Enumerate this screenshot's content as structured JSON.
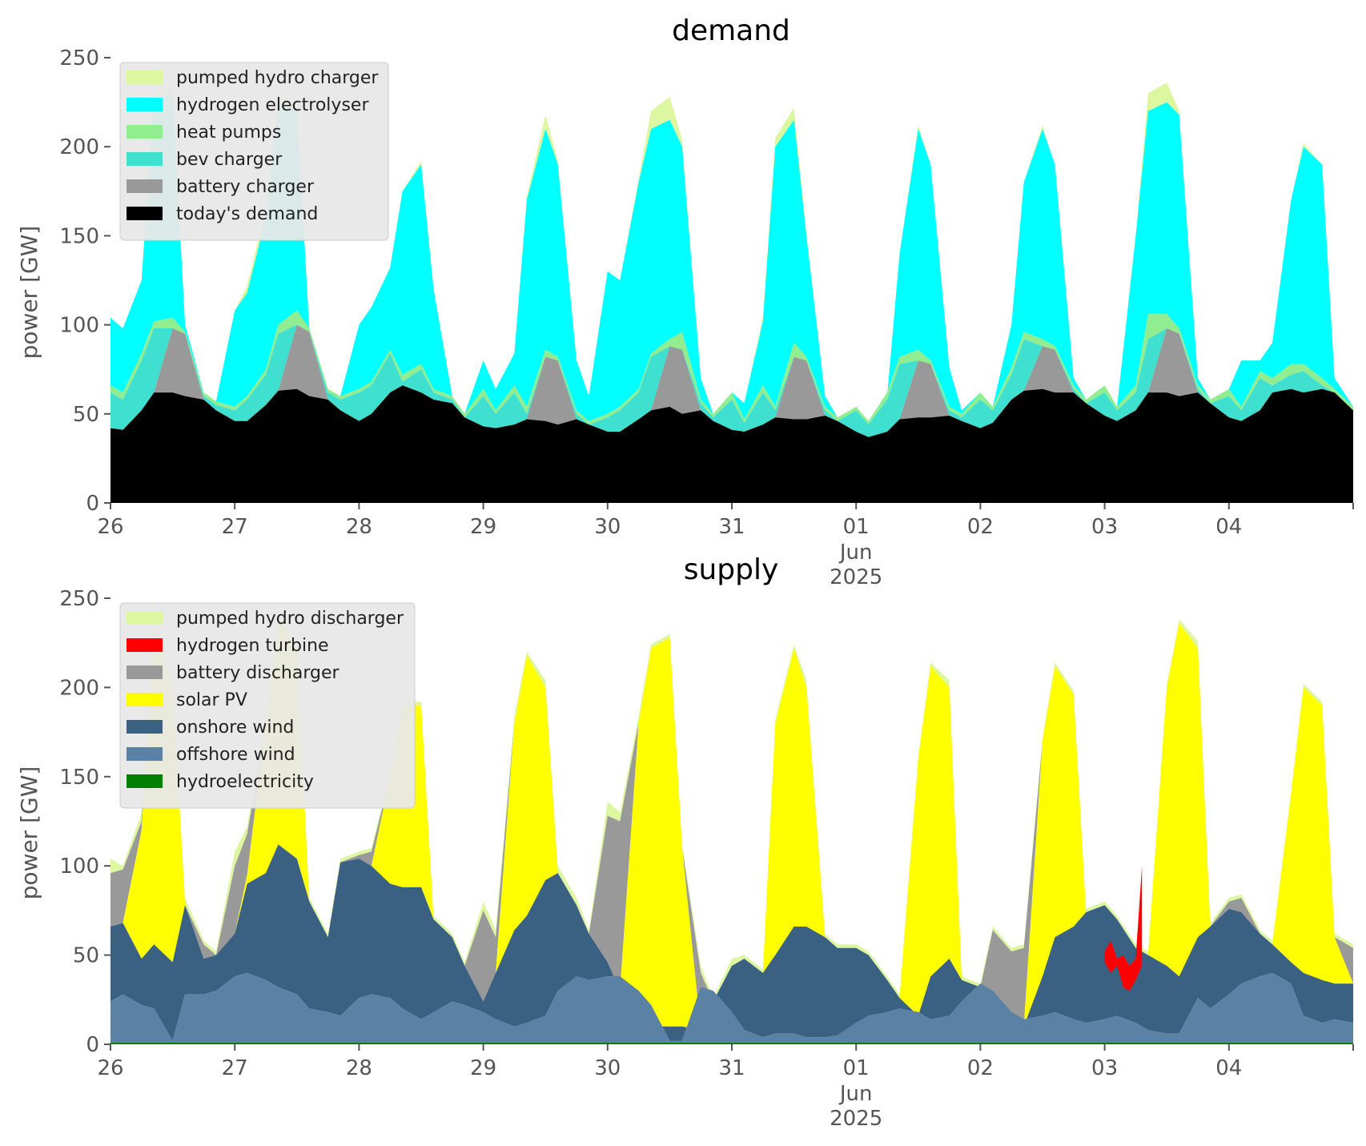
{
  "chart_data": [
    {
      "type": "area",
      "title": "demand",
      "xlabel": "",
      "ylabel": "power [GW]",
      "ylim": [
        0,
        250
      ],
      "xlim": [
        "2025-05-26",
        "2025-06-05"
      ],
      "x_ticks": [
        "26",
        "27",
        "28",
        "29",
        "30",
        "31",
        "01",
        "02",
        "03",
        "04"
      ],
      "x_tick_sublabel": {
        "tick": "01",
        "month": "Jun",
        "year": "2025"
      },
      "y_ticks": [
        "0",
        "50",
        "100",
        "150",
        "200",
        "250"
      ],
      "grid": false,
      "legend_position": "top-left",
      "stacked": true,
      "x_days": [
        "2025-05-26",
        "2025-05-27",
        "2025-05-28",
        "2025-05-29",
        "2025-05-30",
        "2025-05-31",
        "2025-06-01",
        "2025-06-02",
        "2025-06-03",
        "2025-06-04",
        "2025-06-05"
      ],
      "series": [
        {
          "name": "pumped hydro charger",
          "color": "#dcf7a0",
          "cumulative_values": [
            [
              104,
              98,
              125,
              235,
              101,
              58,
              112,
              122,
              230,
              110,
              66,
              100,
              110,
              190,
              193,
              58,
              75,
              70,
              206,
              218,
              82,
              80,
              135,
              218,
              222,
              236,
              58,
              40,
              220,
              224,
              52,
              50,
              39,
              210,
              216,
              62,
              64,
              52,
              210,
              205,
              61,
              50,
              60,
              228,
              238,
              78,
              80,
              70,
              195,
              205,
              62,
              58
            ]
          ]
        },
        {
          "name": "hydrogen electrolyser",
          "color": "#00ffff",
          "values": []
        },
        {
          "name": "heat pumps",
          "color": "#90ee90",
          "values": []
        },
        {
          "name": "bev charger",
          "color": "#40e0d0",
          "values": []
        },
        {
          "name": "battery charger",
          "color": "#999999",
          "values": []
        },
        {
          "name": "today's demand",
          "color": "#000000",
          "values": []
        }
      ]
    },
    {
      "type": "area",
      "title": "supply",
      "xlabel": "",
      "ylabel": "power [GW]",
      "ylim": [
        0,
        250
      ],
      "xlim": [
        "2025-05-26",
        "2025-06-05"
      ],
      "x_ticks": [
        "26",
        "27",
        "28",
        "29",
        "30",
        "31",
        "01",
        "02",
        "03",
        "04"
      ],
      "x_tick_sublabel": {
        "tick": "01",
        "month": "Jun",
        "year": "2025"
      },
      "y_ticks": [
        "0",
        "50",
        "100",
        "150",
        "200",
        "250"
      ],
      "grid": false,
      "legend_position": "top-left",
      "stacked": true,
      "series": [
        {
          "name": "pumped hydro discharger",
          "color": "#dcf7a0",
          "values": []
        },
        {
          "name": "hydrogen turbine",
          "color": "#ff0000",
          "values": []
        },
        {
          "name": "battery discharger",
          "color": "#999999",
          "values": []
        },
        {
          "name": "solar PV",
          "color": "#ffff00",
          "values": []
        },
        {
          "name": "onshore wind",
          "color": "#3b6182",
          "values": []
        },
        {
          "name": "offshore wind",
          "color": "#5b82a5",
          "values": []
        },
        {
          "name": "hydroelectricity",
          "color": "#008000",
          "values": []
        }
      ]
    }
  ],
  "demand_stack": {
    "times": [
      0,
      0.1,
      0.25,
      0.35,
      0.5,
      0.6,
      0.75,
      0.85,
      1.0,
      1.1,
      1.25,
      1.35,
      1.5,
      1.6,
      1.75,
      1.85,
      2.0,
      2.1,
      2.25,
      2.35,
      2.5,
      2.6,
      2.75,
      2.85,
      3.0,
      3.1,
      3.25,
      3.35,
      3.5,
      3.6,
      3.75,
      3.85,
      4.0,
      4.1,
      4.25,
      4.35,
      4.5,
      4.6,
      4.75,
      4.85,
      5.0,
      5.1,
      5.25,
      5.35,
      5.5,
      5.6,
      5.75,
      5.85,
      6.0,
      6.1,
      6.25,
      6.35,
      6.5,
      6.6,
      6.75,
      6.85,
      7.0,
      7.1,
      7.25,
      7.35,
      7.5,
      7.6,
      7.75,
      7.85,
      8.0,
      8.1,
      8.25,
      8.35,
      8.5,
      8.6,
      8.75,
      8.85,
      9.0,
      9.1,
      9.25,
      9.35,
      9.5,
      9.6,
      9.75,
      9.85,
      10.0
    ],
    "today": [
      42,
      41,
      52,
      62,
      62,
      60,
      58,
      52,
      46,
      46,
      55,
      63,
      64,
      60,
      58,
      52,
      46,
      50,
      62,
      66,
      62,
      58,
      56,
      48,
      43,
      42,
      44,
      47,
      46,
      44,
      47,
      44,
      40,
      40,
      47,
      52,
      54,
      50,
      52,
      46,
      41,
      40,
      44,
      48,
      47,
      47,
      49,
      46,
      40,
      37,
      40,
      47,
      48,
      48,
      49,
      46,
      42,
      45,
      58,
      63,
      64,
      62,
      62,
      56,
      49,
      46,
      52,
      62,
      62,
      60,
      62,
      56,
      48,
      46,
      52,
      62,
      64,
      62,
      64,
      62,
      52
    ],
    "battery": [
      42,
      41,
      52,
      62,
      98,
      95,
      58,
      52,
      46,
      46,
      55,
      63,
      100,
      96,
      58,
      52,
      46,
      50,
      62,
      66,
      62,
      58,
      56,
      48,
      43,
      42,
      44,
      47,
      82,
      80,
      47,
      44,
      40,
      40,
      47,
      52,
      88,
      86,
      52,
      46,
      41,
      40,
      44,
      48,
      82,
      80,
      49,
      46,
      40,
      37,
      40,
      47,
      80,
      78,
      49,
      46,
      42,
      45,
      58,
      63,
      88,
      86,
      62,
      56,
      49,
      46,
      52,
      62,
      98,
      95,
      62,
      56,
      48,
      46,
      52,
      62,
      64,
      62,
      64,
      62,
      52
    ],
    "bev": [
      62,
      58,
      80,
      98,
      98,
      95,
      60,
      55,
      52,
      58,
      72,
      95,
      100,
      96,
      62,
      58,
      62,
      66,
      84,
      68,
      75,
      62,
      58,
      48,
      60,
      50,
      62,
      50,
      82,
      80,
      50,
      44,
      48,
      52,
      62,
      82,
      88,
      86,
      56,
      48,
      58,
      45,
      62,
      52,
      82,
      80,
      52,
      46,
      52,
      44,
      58,
      78,
      80,
      78,
      52,
      48,
      58,
      52,
      72,
      92,
      88,
      86,
      64,
      56,
      62,
      52,
      62,
      92,
      98,
      95,
      64,
      56,
      60,
      52,
      70,
      66,
      72,
      74,
      66,
      62,
      52
    ],
    "heatpumps": [
      66,
      62,
      84,
      102,
      104,
      96,
      62,
      57,
      54,
      60,
      75,
      100,
      108,
      98,
      64,
      60,
      64,
      68,
      86,
      72,
      78,
      64,
      60,
      50,
      64,
      52,
      66,
      54,
      86,
      82,
      52,
      46,
      50,
      54,
      64,
      84,
      92,
      96,
      58,
      50,
      62,
      47,
      66,
      54,
      90,
      82,
      54,
      48,
      54,
      46,
      62,
      82,
      86,
      80,
      54,
      50,
      62,
      54,
      76,
      96,
      92,
      88,
      66,
      58,
      66,
      54,
      66,
      106,
      106,
      98,
      66,
      58,
      64,
      54,
      74,
      70,
      78,
      78,
      70,
      64,
      54
    ],
    "electrolyser": [
      104,
      98,
      125,
      225,
      230,
      100,
      62,
      57,
      108,
      118,
      160,
      225,
      220,
      98,
      64,
      60,
      100,
      110,
      132,
      175,
      190,
      120,
      60,
      50,
      80,
      64,
      84,
      170,
      210,
      190,
      80,
      60,
      130,
      125,
      180,
      210,
      215,
      200,
      70,
      50,
      62,
      56,
      102,
      200,
      215,
      150,
      60,
      48,
      54,
      46,
      60,
      140,
      210,
      190,
      76,
      52,
      62,
      54,
      100,
      180,
      210,
      190,
      70,
      58,
      66,
      54,
      150,
      220,
      225,
      218,
      70,
      58,
      64,
      80,
      80,
      90,
      170,
      200,
      190,
      70,
      54
    ],
    "pumped": [
      104,
      98,
      125,
      235,
      232,
      100,
      62,
      57,
      108,
      122,
      165,
      232,
      222,
      98,
      64,
      60,
      100,
      110,
      132,
      175,
      192,
      120,
      60,
      50,
      80,
      64,
      84,
      172,
      218,
      192,
      80,
      60,
      130,
      125,
      182,
      220,
      228,
      204,
      70,
      50,
      62,
      56,
      104,
      205,
      222,
      152,
      60,
      48,
      54,
      46,
      60,
      140,
      212,
      190,
      76,
      52,
      62,
      54,
      100,
      180,
      212,
      190,
      70,
      58,
      66,
      54,
      150,
      230,
      236,
      220,
      70,
      58,
      64,
      80,
      80,
      90,
      170,
      202,
      190,
      70,
      54
    ]
  },
  "supply_stack": {
    "times": [
      0,
      0.1,
      0.25,
      0.35,
      0.5,
      0.6,
      0.75,
      0.85,
      1.0,
      1.1,
      1.25,
      1.35,
      1.5,
      1.6,
      1.75,
      1.85,
      2.0,
      2.1,
      2.25,
      2.35,
      2.5,
      2.6,
      2.75,
      2.85,
      3.0,
      3.1,
      3.25,
      3.35,
      3.5,
      3.6,
      3.75,
      3.85,
      4.0,
      4.1,
      4.25,
      4.35,
      4.5,
      4.6,
      4.75,
      4.85,
      5.0,
      5.1,
      5.25,
      5.35,
      5.5,
      5.6,
      5.75,
      5.85,
      6.0,
      6.1,
      6.25,
      6.35,
      6.5,
      6.6,
      6.75,
      6.85,
      7.0,
      7.1,
      7.25,
      7.35,
      7.5,
      7.6,
      7.75,
      7.85,
      8.0,
      8.1,
      8.25,
      8.35,
      8.5,
      8.6,
      8.75,
      8.85,
      9.0,
      9.1,
      9.25,
      9.35,
      9.5,
      9.6,
      9.75,
      9.85,
      10.0
    ],
    "hydro": [
      1,
      1,
      1,
      1,
      1,
      1,
      1,
      1,
      1,
      1,
      1,
      1,
      1,
      1,
      1,
      1,
      1,
      1,
      1,
      1,
      1,
      1,
      1,
      1,
      1,
      1,
      1,
      1,
      1,
      1,
      1,
      1,
      1,
      1,
      1,
      1,
      1,
      1,
      1,
      1,
      1,
      1,
      1,
      1,
      1,
      1,
      1,
      1,
      1,
      1,
      1,
      1,
      1,
      1,
      1,
      1,
      1,
      1,
      1,
      1,
      1,
      1,
      1,
      1,
      1,
      1,
      1,
      1,
      1,
      1,
      1,
      1,
      1,
      1,
      1,
      1,
      1,
      1,
      1,
      1,
      1
    ],
    "offshore": [
      24,
      28,
      22,
      20,
      2,
      28,
      28,
      30,
      38,
      40,
      36,
      32,
      28,
      20,
      18,
      16,
      26,
      28,
      26,
      20,
      14,
      18,
      24,
      22,
      18,
      14,
      10,
      12,
      16,
      30,
      38,
      36,
      38,
      38,
      30,
      22,
      2,
      2,
      32,
      30,
      18,
      8,
      4,
      6,
      6,
      4,
      4,
      5,
      12,
      16,
      18,
      20,
      18,
      14,
      16,
      24,
      34,
      30,
      18,
      14,
      16,
      18,
      14,
      12,
      14,
      16,
      12,
      8,
      6,
      6,
      26,
      20,
      28,
      34,
      38,
      40,
      34,
      16,
      12,
      14,
      12
    ],
    "onshore": [
      66,
      68,
      48,
      56,
      46,
      78,
      48,
      50,
      62,
      90,
      96,
      112,
      104,
      80,
      60,
      102,
      104,
      100,
      90,
      88,
      88,
      70,
      60,
      44,
      24,
      40,
      64,
      72,
      92,
      96,
      78,
      62,
      46,
      30,
      16,
      10,
      10,
      10,
      8,
      24,
      44,
      48,
      40,
      50,
      66,
      66,
      60,
      54,
      54,
      50,
      36,
      26,
      16,
      38,
      48,
      36,
      32,
      28,
      18,
      10,
      38,
      60,
      66,
      74,
      78,
      70,
      54,
      50,
      44,
      38,
      60,
      66,
      76,
      74,
      62,
      56,
      46,
      40,
      36,
      34,
      34
    ],
    "solar": [
      66,
      68,
      120,
      230,
      200,
      78,
      48,
      50,
      62,
      95,
      180,
      240,
      220,
      80,
      60,
      102,
      104,
      100,
      150,
      190,
      190,
      70,
      60,
      44,
      24,
      40,
      180,
      218,
      200,
      96,
      78,
      62,
      46,
      30,
      180,
      222,
      228,
      110,
      8,
      24,
      44,
      48,
      40,
      180,
      222,
      200,
      60,
      54,
      54,
      50,
      36,
      26,
      160,
      212,
      200,
      36,
      32,
      28,
      18,
      10,
      170,
      212,
      196,
      74,
      78,
      70,
      54,
      50,
      200,
      236,
      222,
      66,
      76,
      74,
      62,
      56,
      140,
      200,
      190,
      60,
      34
    ],
    "battery": [
      96,
      98,
      125,
      230,
      200,
      78,
      56,
      50,
      100,
      118,
      180,
      240,
      220,
      80,
      60,
      102,
      106,
      108,
      150,
      190,
      190,
      70,
      60,
      44,
      75,
      60,
      180,
      218,
      200,
      96,
      78,
      62,
      128,
      125,
      180,
      222,
      228,
      110,
      40,
      24,
      44,
      48,
      40,
      180,
      222,
      200,
      60,
      54,
      54,
      50,
      36,
      26,
      160,
      212,
      200,
      36,
      32,
      64,
      52,
      54,
      170,
      212,
      196,
      74,
      78,
      70,
      54,
      50,
      200,
      236,
      222,
      66,
      80,
      82,
      62,
      56,
      140,
      200,
      190,
      60,
      54
    ],
    "turbine": [
      96,
      98,
      125,
      230,
      200,
      78,
      56,
      50,
      100,
      118,
      180,
      240,
      220,
      80,
      60,
      102,
      106,
      108,
      150,
      190,
      190,
      70,
      60,
      44,
      75,
      60,
      180,
      218,
      200,
      96,
      78,
      62,
      128,
      125,
      180,
      222,
      228,
      110,
      40,
      24,
      44,
      48,
      40,
      180,
      222,
      200,
      60,
      54,
      54,
      50,
      36,
      26,
      160,
      212,
      200,
      36,
      32,
      64,
      52,
      54,
      170,
      212,
      196,
      74,
      78,
      70,
      54,
      50,
      200,
      236,
      222,
      66,
      80,
      82,
      62,
      56,
      140,
      200,
      190,
      60,
      54
    ],
    "pumped": [
      104,
      100,
      130,
      235,
      205,
      82,
      58,
      52,
      108,
      122,
      185,
      240,
      222,
      82,
      62,
      104,
      108,
      110,
      152,
      192,
      192,
      72,
      62,
      46,
      80,
      64,
      184,
      220,
      204,
      100,
      82,
      64,
      136,
      130,
      184,
      224,
      230,
      112,
      44,
      26,
      48,
      50,
      42,
      182,
      224,
      204,
      62,
      56,
      56,
      52,
      38,
      28,
      162,
      214,
      204,
      38,
      34,
      66,
      54,
      56,
      172,
      214,
      198,
      76,
      80,
      72,
      56,
      52,
      202,
      238,
      226,
      68,
      82,
      84,
      64,
      58,
      142,
      202,
      192,
      62,
      56
    ],
    "turbine_band": {
      "t": [
        8.0,
        8.05,
        8.1,
        8.15,
        8.2,
        8.25,
        8.3
      ],
      "low": [
        46,
        40,
        44,
        32,
        30,
        36,
        44
      ],
      "high": [
        52,
        58,
        48,
        50,
        44,
        48,
        100
      ]
    }
  }
}
